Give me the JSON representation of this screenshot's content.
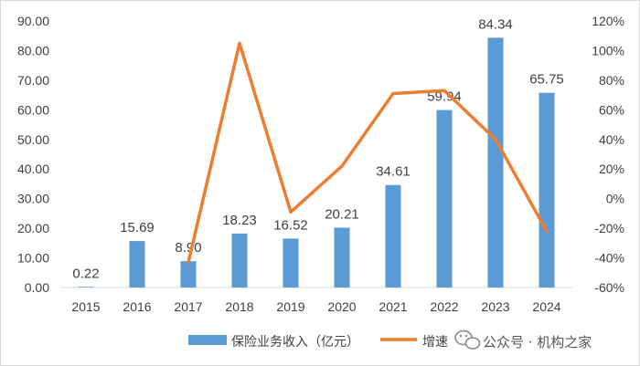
{
  "chart_data": {
    "type": "bar",
    "categories": [
      "2015",
      "2016",
      "2017",
      "2018",
      "2019",
      "2020",
      "2021",
      "2022",
      "2023",
      "2024"
    ],
    "series": [
      {
        "name": "保险业务收入（亿元）",
        "type": "bar",
        "axis": "left",
        "values": [
          0.22,
          15.69,
          8.9,
          18.23,
          16.52,
          20.21,
          34.61,
          59.94,
          84.34,
          65.75
        ],
        "labels": [
          "0.22",
          "15.69",
          "8.90",
          "18.23",
          "16.52",
          "20.21",
          "34.61",
          "59.94",
          "84.34",
          "65.75"
        ],
        "color": "#5b9bd5"
      },
      {
        "name": "增速",
        "type": "line",
        "axis": "right",
        "values": [
          null,
          null,
          -43,
          105,
          -9,
          22,
          71,
          73,
          40,
          -22
        ],
        "color": "#ed7d31"
      }
    ],
    "y_left": {
      "ylim": [
        0,
        90
      ],
      "ticks": [
        "0.00",
        "10.00",
        "20.00",
        "30.00",
        "40.00",
        "50.00",
        "60.00",
        "70.00",
        "80.00",
        "90.00"
      ]
    },
    "y_right": {
      "ylim": [
        -60,
        120
      ],
      "ticks": [
        "-60%",
        "-40%",
        "-20%",
        "0%",
        "20%",
        "40%",
        "60%",
        "80%",
        "100%",
        "120%"
      ]
    },
    "grid": false,
    "legend_position": "bottom"
  },
  "watermark": {
    "text": "公众号 · 机构之家",
    "icon": "wechat-icon"
  }
}
